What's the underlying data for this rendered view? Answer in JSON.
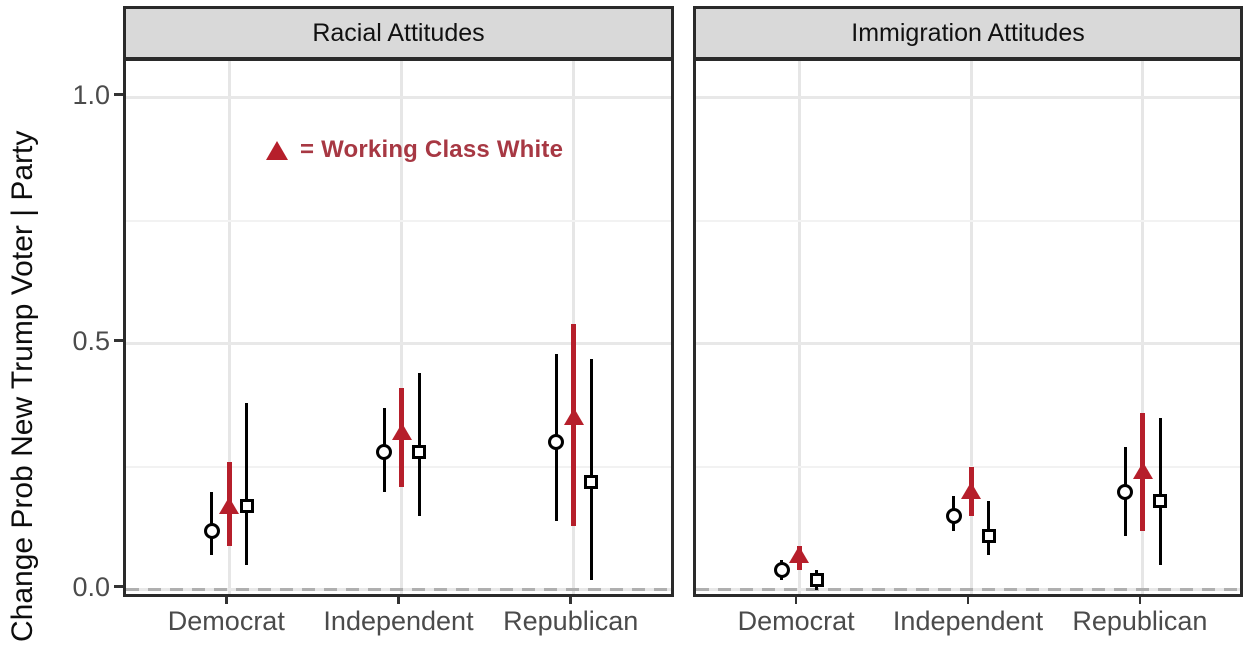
{
  "chart_data": {
    "type": "scatter",
    "subtype": "faceted-pointrange",
    "ylabel": "Change Prob New Trump Voter | Party",
    "ylim": [
      -0.0205,
      1.075
    ],
    "yticks": [
      {
        "value": 0.0,
        "label": "0.0"
      },
      {
        "value": 0.5,
        "label": "0.5"
      },
      {
        "value": 1.0,
        "label": "1.0"
      }
    ],
    "minor_gridlines": [
      0.25,
      0.75
    ],
    "grid": true,
    "legend_position": "none",
    "reference_line": {
      "y": 0.0,
      "style": "dashed",
      "color": "#AFAFAF"
    },
    "categories": [
      "Democrat",
      "Independent",
      "Republican"
    ],
    "annotation": {
      "symbol": "triangle-icon",
      "label": "= Working Class White",
      "symbol_color": "#B61F2B",
      "text_color": "#A73843"
    },
    "series_meta": [
      {
        "key": "circle-group",
        "marker": "circle",
        "color": "#000000",
        "fill": "#FFFFFF"
      },
      {
        "key": "working-class-white",
        "marker": "triangle",
        "color": "#B61F2B",
        "fill": "#B61F2B"
      },
      {
        "key": "square-group",
        "marker": "square",
        "color": "#000000",
        "fill": "#FFFFFF"
      }
    ],
    "panels": [
      {
        "title": "Racial Attitudes",
        "series": [
          {
            "marker": "circle",
            "estimates": [
              0.12,
              0.28,
              0.3
            ],
            "ci_low": [
              0.07,
              0.2,
              0.14
            ],
            "ci_high": [
              0.2,
              0.37,
              0.48
            ]
          },
          {
            "marker": "triangle",
            "estimates": [
              0.17,
              0.32,
              0.35
            ],
            "ci_low": [
              0.09,
              0.21,
              0.13
            ],
            "ci_high": [
              0.26,
              0.41,
              0.54
            ]
          },
          {
            "marker": "square",
            "estimates": [
              0.17,
              0.28,
              0.22
            ],
            "ci_low": [
              0.05,
              0.15,
              0.02
            ],
            "ci_high": [
              0.38,
              0.44,
              0.47
            ]
          }
        ]
      },
      {
        "title": "Immigration Attitudes",
        "series": [
          {
            "marker": "circle",
            "estimates": [
              0.04,
              0.15,
              0.2
            ],
            "ci_low": [
              0.02,
              0.12,
              0.11
            ],
            "ci_high": [
              0.06,
              0.19,
              0.29
            ]
          },
          {
            "marker": "triangle",
            "estimates": [
              0.07,
              0.2,
              0.24
            ],
            "ci_low": [
              0.04,
              0.15,
              0.12
            ],
            "ci_high": [
              0.09,
              0.25,
              0.36
            ]
          },
          {
            "marker": "square",
            "estimates": [
              0.02,
              0.11,
              0.18
            ],
            "ci_low": [
              0.0,
              0.07,
              0.05
            ],
            "ci_high": [
              0.04,
              0.18,
              0.35
            ]
          }
        ]
      }
    ],
    "style": {
      "strip_bg": "#D9D9D9",
      "panel_border": "#2A2A2A",
      "axis_text_color": "#4B4B4B",
      "gridline_major": "#E8E8E8",
      "gridline_minor": "#F2F2F2"
    }
  }
}
